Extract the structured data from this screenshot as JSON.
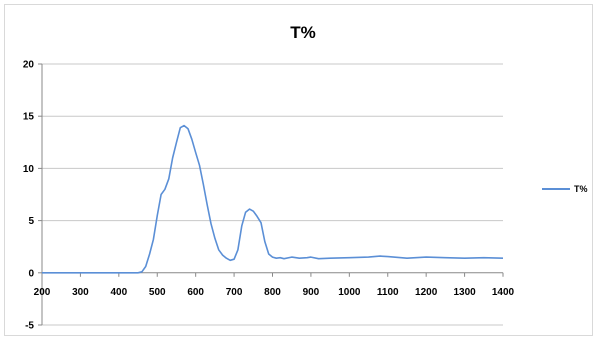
{
  "chart_data": {
    "type": "line",
    "title": "T%",
    "xlabel": "",
    "ylabel": "",
    "xlim": [
      200,
      1400
    ],
    "ylim": [
      -5,
      20
    ],
    "xticks": [
      200,
      300,
      400,
      500,
      600,
      700,
      800,
      900,
      1000,
      1100,
      1200,
      1300,
      1400
    ],
    "yticks": [
      -5,
      0,
      5,
      10,
      15,
      20
    ],
    "grid": true,
    "legend_position": "right",
    "series": [
      {
        "name": "T%",
        "color": "#5b8fd6",
        "x": [
          200,
          300,
          400,
          450,
          460,
          470,
          480,
          490,
          500,
          510,
          520,
          530,
          540,
          550,
          560,
          570,
          580,
          590,
          600,
          610,
          620,
          630,
          640,
          650,
          660,
          670,
          680,
          690,
          700,
          710,
          720,
          730,
          740,
          750,
          760,
          770,
          780,
          790,
          800,
          810,
          820,
          830,
          850,
          870,
          890,
          900,
          920,
          950,
          1000,
          1050,
          1080,
          1100,
          1150,
          1200,
          1250,
          1300,
          1350,
          1400
        ],
        "y": [
          0,
          0,
          0,
          0,
          0.1,
          0.6,
          1.8,
          3.2,
          5.5,
          7.5,
          8.0,
          9.0,
          11.0,
          12.5,
          13.9,
          14.1,
          13.8,
          12.8,
          11.5,
          10.3,
          8.5,
          6.5,
          4.7,
          3.3,
          2.2,
          1.7,
          1.4,
          1.2,
          1.3,
          2.2,
          4.5,
          5.8,
          6.1,
          5.9,
          5.4,
          4.8,
          3.0,
          1.8,
          1.5,
          1.4,
          1.45,
          1.35,
          1.5,
          1.4,
          1.45,
          1.5,
          1.35,
          1.4,
          1.45,
          1.5,
          1.6,
          1.55,
          1.4,
          1.5,
          1.45,
          1.4,
          1.45,
          1.4
        ]
      }
    ]
  }
}
